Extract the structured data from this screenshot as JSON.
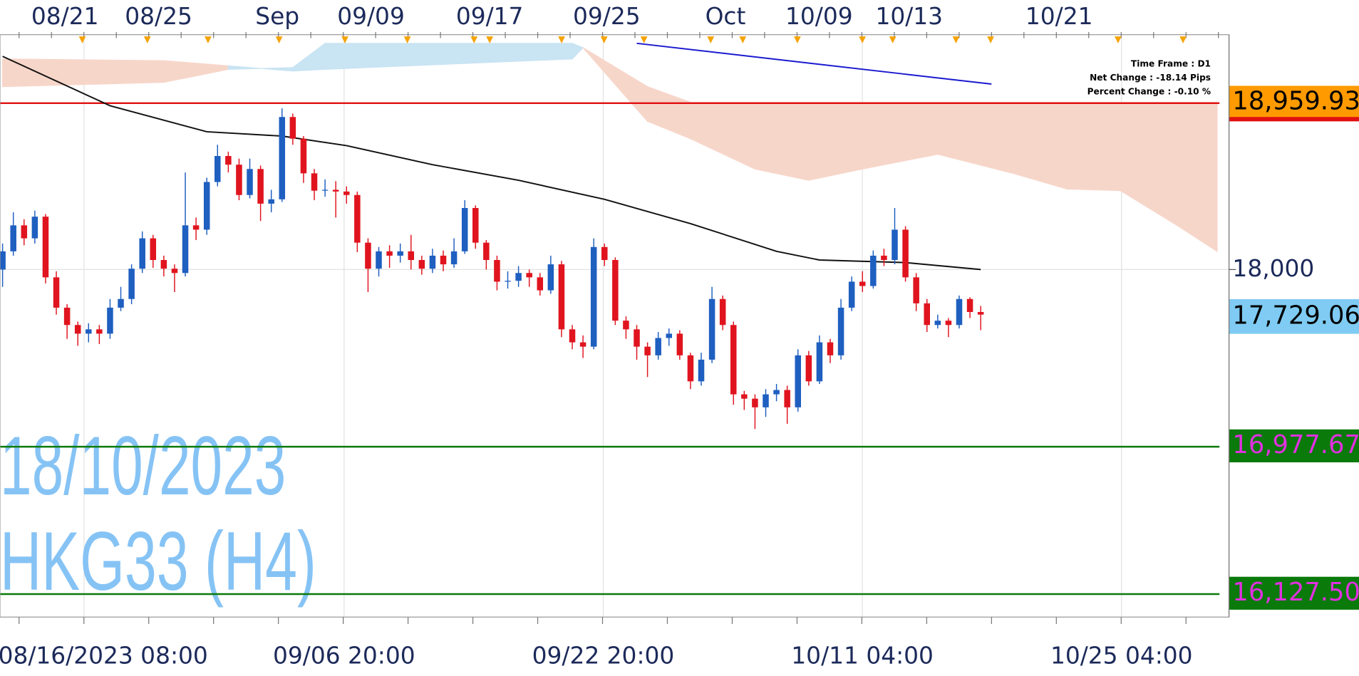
{
  "chart_data": {
    "type": "candlestick",
    "up_color": "#1e5fc0",
    "down_color": "#e0141e",
    "open": [
      18000,
      18105,
      18255,
      18180,
      18305,
      17955,
      17780,
      17680,
      17630,
      17655,
      17630,
      17780,
      17830,
      18005,
      18180,
      18055,
      18005,
      17980,
      18255,
      18230,
      18505,
      18655,
      18605,
      18430,
      18580,
      18380,
      18405,
      18880,
      18755,
      18555,
      18455,
      18460,
      18450,
      18430,
      18155,
      18005,
      18105,
      18080,
      18105,
      18055,
      18005,
      18080,
      18030,
      18105,
      18355,
      18155,
      18055,
      17930,
      17935,
      17980,
      17955,
      17880,
      18030,
      17655,
      17580,
      17555,
      18130,
      18055,
      17705,
      17655,
      17555,
      17505,
      17605,
      17630,
      17505,
      17355,
      17480,
      17830,
      17680,
      17280,
      17255,
      17205,
      17280,
      17305,
      17205,
      17505,
      17355,
      17580,
      17505,
      17780,
      17930,
      17905,
      18080,
      18055,
      18230,
      17955,
      17805,
      17680,
      17705,
      17680,
      17830,
      17755
    ],
    "high": [
      18150,
      18330,
      18290,
      18340,
      18320,
      17990,
      17800,
      17700,
      17690,
      17680,
      17830,
      17900,
      18030,
      18220,
      18200,
      18080,
      18030,
      18560,
      18300,
      18530,
      18720,
      18680,
      18640,
      18640,
      18600,
      18460,
      18930,
      18900,
      18770,
      18580,
      18520,
      18510,
      18480,
      18450,
      18180,
      18130,
      18140,
      18150,
      18200,
      18080,
      18120,
      18110,
      18180,
      18400,
      18370,
      18170,
      18080,
      17990,
      18020,
      18000,
      17980,
      18080,
      18050,
      17680,
      17620,
      18180,
      18150,
      18070,
      17730,
      17680,
      17580,
      17640,
      17660,
      17650,
      17520,
      17520,
      17900,
      17850,
      17700,
      17300,
      17280,
      17310,
      17340,
      17330,
      17540,
      17530,
      17620,
      17600,
      17830,
      17960,
      17990,
      18110,
      18120,
      18355,
      18250,
      17980,
      17830,
      17740,
      17720,
      17850,
      17840,
      17790
    ],
    "low": [
      17900,
      18080,
      18140,
      18150,
      17920,
      17740,
      17600,
      17560,
      17580,
      17570,
      17600,
      17760,
      17800,
      17980,
      18010,
      17960,
      17870,
      17960,
      18170,
      18200,
      18480,
      18560,
      18400,
      18410,
      18280,
      18330,
      18390,
      18720,
      18500,
      18400,
      18420,
      18300,
      18380,
      18100,
      17870,
      17960,
      18010,
      18040,
      18000,
      17970,
      17980,
      17990,
      18010,
      18090,
      18120,
      18000,
      17880,
      17890,
      17900,
      17900,
      17850,
      17860,
      17610,
      17540,
      17490,
      17540,
      18020,
      17680,
      17600,
      17480,
      17380,
      17480,
      17560,
      17480,
      17310,
      17330,
      17460,
      17650,
      17220,
      17190,
      17080,
      17150,
      17240,
      17110,
      17180,
      17330,
      17340,
      17460,
      17480,
      17760,
      17870,
      17890,
      18020,
      18030,
      17930,
      17760,
      17640,
      17660,
      17610,
      17660,
      17720,
      17650
    ],
    "close": [
      18105,
      18255,
      18180,
      18305,
      17955,
      17780,
      17680,
      17630,
      17655,
      17630,
      17780,
      17830,
      18005,
      18180,
      18055,
      18005,
      17980,
      18255,
      18230,
      18505,
      18655,
      18605,
      18430,
      18580,
      18380,
      18405,
      18880,
      18755,
      18555,
      18455,
      18460,
      18450,
      18430,
      18155,
      18005,
      18105,
      18080,
      18105,
      18055,
      18005,
      18080,
      18030,
      18105,
      18355,
      18155,
      18055,
      17930,
      17935,
      17980,
      17955,
      17880,
      18030,
      17655,
      17580,
      17555,
      18130,
      18055,
      17705,
      17655,
      17555,
      17505,
      17605,
      17630,
      17505,
      17355,
      17480,
      17830,
      17680,
      17280,
      17255,
      17205,
      17280,
      17305,
      17205,
      17505,
      17355,
      17580,
      17505,
      17780,
      17930,
      17905,
      18080,
      18055,
      18230,
      17955,
      17805,
      17680,
      17705,
      17680,
      17830,
      17755,
      17740
    ],
    "xlim": [
      -0.24,
      114.1
    ],
    "ylim": [
      15995,
      19355
    ],
    "yticks": [
      {
        "value": 18000,
        "label": "18,000"
      }
    ],
    "grid": true,
    "top_labels": [
      "08/21",
      "08/25",
      "Sep",
      "09/09",
      "09/17",
      "09/25",
      "Oct",
      "10/09",
      "10/13",
      "10/21"
    ],
    "bottom_labels": [
      "08/16/2023 08:00",
      "09/06 20:00",
      "09/22 20:00",
      "10/11 04:00",
      "10/25 04:00"
    ],
    "lines": [
      {
        "color": "#111111",
        "x": [
          0,
          10,
          19,
          26,
          32,
          40,
          48,
          56,
          64,
          72,
          76,
          84,
          91
        ],
        "values": [
          19230,
          18945,
          18795,
          18770,
          18715,
          18605,
          18515,
          18405,
          18265,
          18105,
          18055,
          18040,
          18000
        ]
      },
      {
        "color": "#1a1ad0",
        "x": [
          59,
          92
        ],
        "values": [
          19305,
          19070
        ]
      }
    ],
    "cloud": {
      "up_color": "#c9e4f3",
      "down_color": "#f7d6ca",
      "x": [
        0,
        15,
        21,
        27,
        30,
        53,
        54,
        60,
        64,
        70,
        75,
        80,
        87,
        94,
        99,
        104,
        109,
        113
      ],
      "span_a": [
        19055,
        19080,
        19155,
        19165,
        19305,
        19305,
        19280,
        18855,
        18755,
        18580,
        18515,
        18580,
        18665,
        18555,
        18465,
        18455,
        18265,
        18105
      ],
      "span_b": [
        19215,
        19205,
        19175,
        19145,
        19155,
        19215,
        19280,
        19055,
        18965,
        18965,
        18965,
        18965,
        18965,
        18965,
        18965,
        18965,
        18965,
        18965
      ]
    },
    "levels": [
      {
        "value": 18959.93,
        "label": "18,959.93",
        "line_color": "#e01010",
        "box_color": "#ff9a00",
        "text_color": "#000000"
      },
      {
        "value": 16977.67,
        "label": "16,977.67",
        "line_color": "#0a7a0a",
        "box_color": "#0a7a0a",
        "text_color": "#e030e0"
      },
      {
        "value": 16127.5,
        "label": "16,127.50",
        "line_color": "#0a7a0a",
        "box_color": "#0a7a0a",
        "text_color": "#e030e0"
      }
    ],
    "current_price": {
      "value": 17729.06,
      "label": "17,729.06",
      "box_color": "#7fcbf3"
    },
    "annotations": [
      "18/10/2023",
      "HKG33 (H4)"
    ],
    "info": [
      "Time Frame : D1",
      "Net Change : -18.14 Pips",
      "Percent Change : -0.10 %"
    ]
  }
}
